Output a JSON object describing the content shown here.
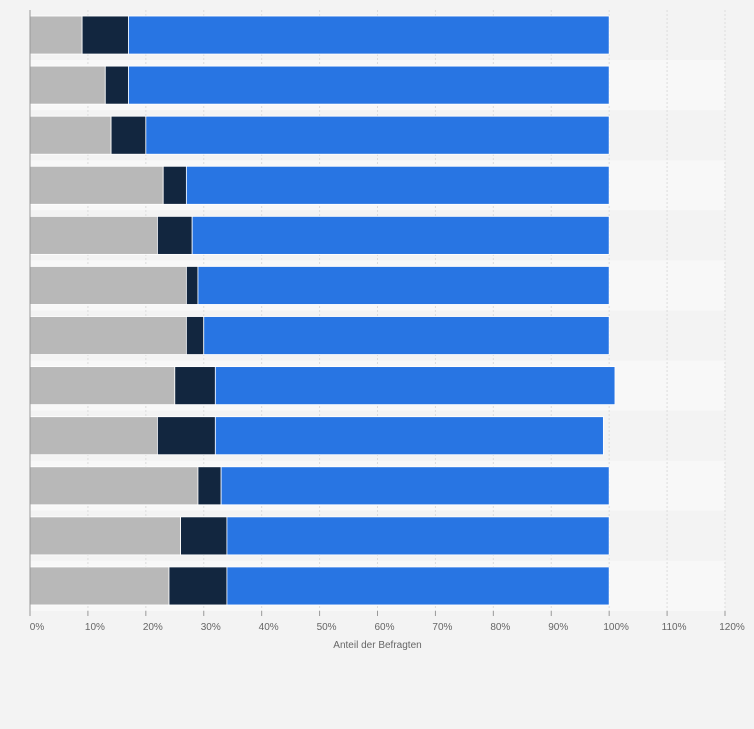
{
  "chart_data": {
    "type": "bar",
    "orientation": "horizontal",
    "stacked": true,
    "title": "",
    "xlabel": "Anteil der Befragten",
    "ylabel": "",
    "xlim": [
      0,
      120
    ],
    "x_ticks": [
      "0%",
      "10%",
      "20%",
      "30%",
      "40%",
      "50%",
      "60%",
      "70%",
      "80%",
      "90%",
      "100%",
      "110%",
      "120%"
    ],
    "categories": [
      "",
      "",
      "",
      "",
      "",
      "",
      "",
      "",
      "",
      "",
      "",
      ""
    ],
    "series": [
      {
        "name": "",
        "color": "#b8b8b8",
        "values": [
          9,
          13,
          14,
          23,
          22,
          27,
          27,
          25,
          22,
          29,
          26,
          24
        ]
      },
      {
        "name": "",
        "color": "#12263f",
        "values": [
          8,
          4,
          6,
          4,
          6,
          2,
          3,
          7,
          10,
          4,
          8,
          10
        ]
      },
      {
        "name": "",
        "color": "#2875e3",
        "values": [
          83,
          83,
          80,
          73,
          72,
          71,
          70,
          69,
          67,
          67,
          66,
          66
        ]
      }
    ],
    "grid": true,
    "legend": "none"
  }
}
